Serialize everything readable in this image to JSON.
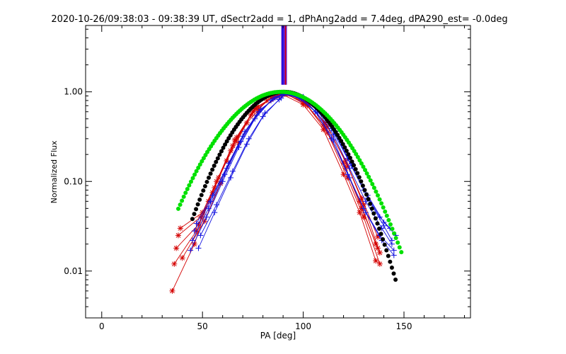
{
  "chart_data": {
    "type": "line",
    "title": "2020-10-26/09:38:03 - 09:38:39 UT, dSectr2add = 1, dPhAng2add = 7.4deg, dPA290_est= -0.0deg",
    "xlabel": "PA [deg]",
    "ylabel": "Normalized Flux",
    "xlim": [
      -8,
      183
    ],
    "ylim": [
      0.003,
      5.5
    ],
    "yscale": "log",
    "x_ticks": [
      0,
      50,
      100,
      150
    ],
    "x_tick_labels": [
      "0",
      "50",
      "100",
      "150"
    ],
    "y_ticks": [
      0.01,
      0.1,
      1.0
    ],
    "y_tick_labels": [
      "0.01",
      "0.10",
      "1.00"
    ],
    "colors": {
      "red": "#d40000",
      "blue": "#1010e0",
      "green": "#00e000",
      "black": "#000000",
      "spike": "#6b1ad0"
    },
    "spike": {
      "x": 90.5,
      "y_from": 1.2,
      "y_to": 5.5
    },
    "model_curves": [
      {
        "name": "black-fit",
        "color": "black",
        "sigma": 17.8,
        "center": 90.5,
        "x_range": [
          45,
          146
        ]
      },
      {
        "name": "green-fit",
        "color": "green",
        "sigma": 20.8,
        "center": 89,
        "x_range": [
          38,
          149
        ]
      }
    ],
    "series": [
      {
        "name": "red-1",
        "color": "red",
        "marker": "*",
        "x": [
          35,
          46,
          53,
          62,
          72,
          82,
          90,
          100,
          110,
          120,
          128,
          136
        ],
        "y": [
          0.006,
          0.02,
          0.06,
          0.17,
          0.45,
          0.8,
          0.93,
          0.72,
          0.38,
          0.12,
          0.045,
          0.013
        ]
      },
      {
        "name": "red-2",
        "color": "red",
        "marker": "*",
        "x": [
          36,
          47,
          55,
          64,
          74,
          84,
          91,
          101,
          111,
          121,
          129,
          137
        ],
        "y": [
          0.012,
          0.028,
          0.075,
          0.22,
          0.55,
          0.85,
          0.95,
          0.75,
          0.4,
          0.14,
          0.05,
          0.018
        ]
      },
      {
        "name": "red-3",
        "color": "red",
        "marker": "*",
        "x": [
          37,
          48,
          56,
          65,
          75,
          85,
          92,
          102,
          112,
          122,
          130,
          138
        ],
        "y": [
          0.018,
          0.033,
          0.085,
          0.25,
          0.6,
          0.88,
          0.94,
          0.7,
          0.35,
          0.11,
          0.04,
          0.012
        ]
      },
      {
        "name": "red-4",
        "color": "red",
        "marker": "*",
        "x": [
          38,
          49,
          57,
          66,
          76,
          86,
          90,
          100,
          110,
          120,
          128,
          136
        ],
        "y": [
          0.025,
          0.04,
          0.1,
          0.29,
          0.65,
          0.9,
          0.96,
          0.78,
          0.43,
          0.16,
          0.06,
          0.02
        ]
      },
      {
        "name": "red-5",
        "color": "red",
        "marker": "*",
        "x": [
          39,
          50,
          58,
          67,
          77,
          87,
          91,
          101,
          111,
          121,
          129,
          137
        ],
        "y": [
          0.03,
          0.045,
          0.11,
          0.31,
          0.68,
          0.92,
          0.97,
          0.8,
          0.45,
          0.17,
          0.065,
          0.024
        ]
      },
      {
        "name": "red-6",
        "color": "red",
        "marker": "*",
        "x": [
          40,
          51,
          59,
          68,
          78,
          88,
          92,
          102,
          112,
          122,
          130,
          138
        ],
        "y": [
          0.014,
          0.036,
          0.095,
          0.27,
          0.62,
          0.89,
          0.95,
          0.76,
          0.41,
          0.15,
          0.055,
          0.016
        ]
      },
      {
        "name": "blue-1",
        "color": "blue",
        "marker": "+",
        "x": [
          44,
          52,
          60,
          68,
          76,
          84,
          90,
          98,
          106,
          114,
          122,
          130,
          138,
          145
        ],
        "y": [
          0.017,
          0.04,
          0.1,
          0.24,
          0.5,
          0.8,
          0.95,
          0.85,
          0.6,
          0.3,
          0.12,
          0.05,
          0.025,
          0.017
        ]
      },
      {
        "name": "blue-2",
        "color": "blue",
        "marker": "+",
        "x": [
          45,
          53,
          61,
          69,
          77,
          85,
          91,
          99,
          107,
          115,
          123,
          131,
          139,
          144
        ],
        "y": [
          0.022,
          0.05,
          0.12,
          0.28,
          0.55,
          0.83,
          0.96,
          0.86,
          0.62,
          0.33,
          0.14,
          0.06,
          0.03,
          0.02
        ]
      },
      {
        "name": "blue-3",
        "color": "blue",
        "marker": "+",
        "x": [
          46,
          54,
          62,
          70,
          78,
          86,
          92,
          100,
          108,
          116,
          124,
          132,
          140,
          146
        ],
        "y": [
          0.028,
          0.06,
          0.14,
          0.32,
          0.6,
          0.86,
          0.97,
          0.88,
          0.65,
          0.36,
          0.16,
          0.07,
          0.035,
          0.025
        ]
      },
      {
        "name": "blue-4",
        "color": "blue",
        "marker": "+",
        "x": [
          47,
          55,
          63,
          71,
          79,
          87,
          90,
          98,
          106,
          114,
          122,
          130,
          138,
          143
        ],
        "y": [
          0.034,
          0.07,
          0.16,
          0.36,
          0.64,
          0.88,
          0.97,
          0.9,
          0.68,
          0.39,
          0.18,
          0.08,
          0.04,
          0.03
        ]
      },
      {
        "name": "blue-5",
        "color": "blue",
        "marker": "+",
        "x": [
          48,
          56,
          64,
          72,
          80,
          88,
          91,
          99,
          107,
          115,
          123,
          131,
          139,
          145
        ],
        "y": [
          0.018,
          0.045,
          0.11,
          0.26,
          0.53,
          0.82,
          0.96,
          0.84,
          0.58,
          0.29,
          0.11,
          0.045,
          0.022,
          0.015
        ]
      },
      {
        "name": "blue-6",
        "color": "blue",
        "marker": "+",
        "x": [
          49,
          57,
          65,
          73,
          81,
          89,
          92,
          100,
          108,
          116,
          124,
          132,
          140,
          144
        ],
        "y": [
          0.025,
          0.055,
          0.13,
          0.3,
          0.58,
          0.85,
          0.97,
          0.87,
          0.63,
          0.34,
          0.15,
          0.065,
          0.032,
          0.022
        ]
      }
    ]
  }
}
